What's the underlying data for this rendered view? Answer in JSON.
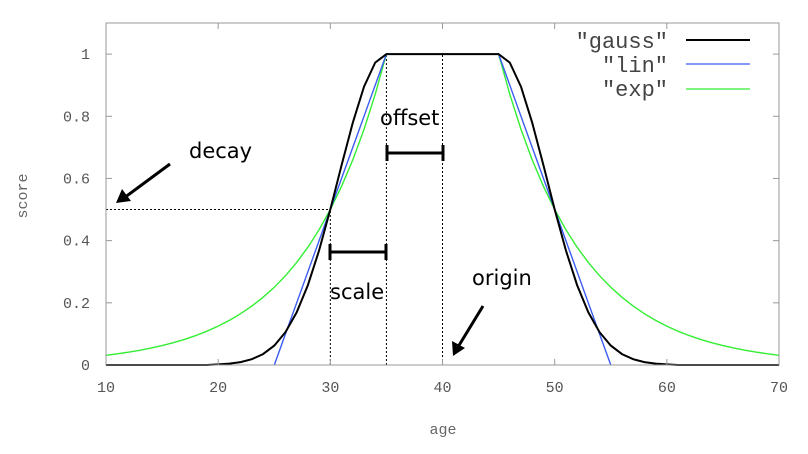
{
  "chart_data": {
    "type": "line",
    "xlabel": "age",
    "ylabel": "score",
    "xlim": [
      10,
      70
    ],
    "ylim": [
      0,
      1.1
    ],
    "xticks": [
      10,
      20,
      30,
      40,
      50,
      60,
      70
    ],
    "yticks": [
      0,
      0.2,
      0.4,
      0.6,
      0.8,
      1
    ],
    "ytick_labels": [
      "0",
      "0.2",
      "0.4",
      "0.6",
      "0.8",
      "1"
    ],
    "grid": false,
    "legend_position": "top-right",
    "x": [
      10,
      11,
      12,
      13,
      14,
      15,
      16,
      17,
      18,
      19,
      20,
      21,
      22,
      23,
      24,
      25,
      26,
      27,
      28,
      29,
      30,
      31,
      32,
      33,
      34,
      35,
      36,
      37,
      38,
      39,
      40,
      41,
      42,
      43,
      44,
      45,
      46,
      47,
      48,
      49,
      50,
      51,
      52,
      53,
      54,
      55,
      56,
      57,
      58,
      59,
      60,
      61,
      62,
      63,
      64,
      65,
      66,
      67,
      68,
      69,
      70
    ],
    "series": [
      {
        "name": "\"gauss\"",
        "color": "#000000",
        "values": [
          0,
          0,
          0,
          0,
          0,
          0,
          0,
          0,
          0,
          0,
          0.002,
          0.0044,
          0.0092,
          0.0185,
          0.0349,
          0.0625,
          0.1058,
          0.1696,
          0.257,
          0.3686,
          0.5,
          0.6417,
          0.7792,
          0.895,
          0.9727,
          1,
          1,
          1,
          1,
          1,
          1,
          1,
          1,
          1,
          1,
          1,
          0.9727,
          0.895,
          0.7792,
          0.6417,
          0.5,
          0.3686,
          0.257,
          0.1696,
          0.1058,
          0.0625,
          0.0349,
          0.0185,
          0.0092,
          0.0044,
          0.002,
          0,
          0,
          0,
          0,
          0,
          0,
          0,
          0,
          0,
          0
        ]
      },
      {
        "name": "\"lin\"",
        "color": "#3a5cf0",
        "values": [
          null,
          null,
          null,
          null,
          null,
          null,
          null,
          null,
          null,
          null,
          null,
          null,
          null,
          null,
          null,
          0,
          0.1,
          0.2,
          0.3,
          0.4,
          0.5,
          0.6,
          0.7,
          0.8,
          0.9,
          1,
          1,
          1,
          1,
          1,
          1,
          1,
          1,
          1,
          1,
          1,
          0.9,
          0.8,
          0.7,
          0.6,
          0.5,
          0.4,
          0.3,
          0.2,
          0.1,
          0,
          null,
          null,
          null,
          null,
          null,
          null,
          null,
          null,
          null,
          null,
          null,
          null,
          null,
          null,
          null
        ]
      },
      {
        "name": "\"exp\"",
        "color": "#33ee33",
        "values": [
          0.0313,
          0.0359,
          0.0412,
          0.0474,
          0.0544,
          0.0625,
          0.0718,
          0.0825,
          0.0947,
          0.1088,
          0.125,
          0.1436,
          0.1649,
          0.1895,
          0.2176,
          0.25,
          0.2872,
          0.3299,
          0.3789,
          0.4353,
          0.5,
          0.5743,
          0.6598,
          0.7579,
          0.8706,
          1,
          1,
          1,
          1,
          1,
          1,
          1,
          1,
          1,
          1,
          1,
          0.8706,
          0.7579,
          0.6598,
          0.5743,
          0.5,
          0.4353,
          0.3789,
          0.3299,
          0.2872,
          0.25,
          0.2176,
          0.1895,
          0.1649,
          0.1436,
          0.125,
          0.1088,
          0.0947,
          0.0825,
          0.0718,
          0.0625,
          0.0544,
          0.0474,
          0.0412,
          0.0359,
          0.0313
        ]
      }
    ],
    "annotations": [
      {
        "text": "decay",
        "points_to": [
          10,
          0.5
        ]
      },
      {
        "text": "offset",
        "from": 35,
        "to": 40,
        "y": 0.68
      },
      {
        "text": "scale",
        "from": 30,
        "to": 35,
        "y": 0.36
      },
      {
        "text": "origin",
        "points_to": [
          40,
          0
        ]
      }
    ],
    "reference_lines": {
      "vertical": [
        {
          "x": 30,
          "y_to": 0.5
        },
        {
          "x": 35,
          "y_to": 1
        },
        {
          "x": 40,
          "y_to": 1
        }
      ],
      "horizontal": [
        {
          "y": 0.5,
          "x_from": 10,
          "x_to": 30
        }
      ]
    }
  }
}
